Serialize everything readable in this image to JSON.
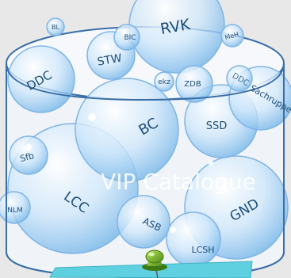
{
  "illustration": {
    "watermark": "VIP Catalogue",
    "bubbles": [
      {
        "label": "RVK"
      },
      {
        "label": "BL"
      },
      {
        "label": "BIC"
      },
      {
        "label": "STW"
      },
      {
        "label": "MeH"
      },
      {
        "label": "DDC"
      },
      {
        "label": "ekz"
      },
      {
        "label": "ZDB"
      },
      {
        "label": "DDC"
      },
      {
        "label": "Sachruppe"
      },
      {
        "label": "BC"
      },
      {
        "label": "SSD"
      },
      {
        "label": "Sfb"
      },
      {
        "label": "LCC"
      },
      {
        "label": "NLM"
      },
      {
        "label": "GND"
      },
      {
        "label": "ASB"
      },
      {
        "label": "LCSH"
      }
    ]
  }
}
